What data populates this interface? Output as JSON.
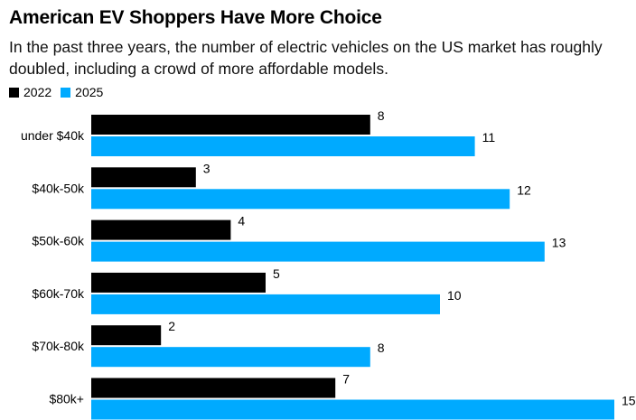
{
  "title": "American EV Shoppers Have More Choice",
  "subtitle": "In the past three years, the number of electric vehicles on the US market has roughly doubled, including a crowd of more affordable models.",
  "colors": {
    "series_2022": "#000000",
    "series_2025": "#00aaff"
  },
  "chart_data": {
    "type": "bar",
    "orientation": "horizontal",
    "categories": [
      "under $40k",
      "$40k-50k",
      "$50k-60k",
      "$60k-70k",
      "$70k-80k",
      "$80k+"
    ],
    "series": [
      {
        "name": "2022",
        "values": [
          8,
          3,
          4,
          5,
          2,
          7
        ]
      },
      {
        "name": "2025",
        "values": [
          11,
          12,
          13,
          10,
          8,
          15
        ]
      }
    ],
    "xlim": [
      0,
      15
    ],
    "grid": false,
    "legend": "top-left"
  }
}
